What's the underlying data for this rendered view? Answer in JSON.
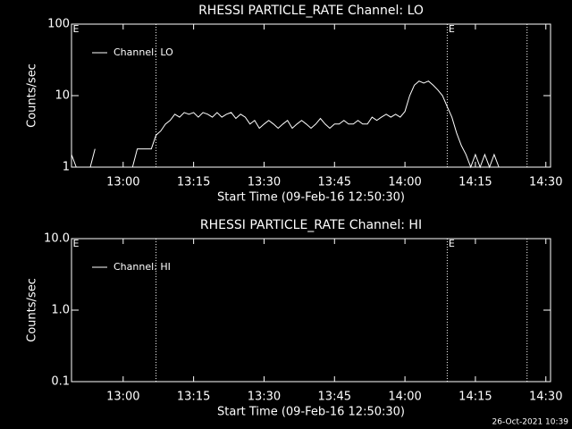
{
  "chart_data": [
    {
      "type": "line",
      "title": "RHESSI PARTICLE_RATE Channel: LO",
      "xlabel": "Start Time (09-Feb-16 12:50:30)",
      "ylabel": "Counts/sec",
      "log_y": true,
      "legend": "upper left",
      "xlim": [
        "12:49",
        "14:31"
      ],
      "xticks": [
        "13:00",
        "13:15",
        "13:30",
        "13:45",
        "14:00",
        "14:15",
        "14:30"
      ],
      "ylim": [
        1,
        100
      ],
      "yticks": [
        1,
        10,
        100
      ],
      "vlines": [
        "13:07",
        "14:09",
        "14:26"
      ],
      "annotations": [
        {
          "text": "E",
          "x": "12:49"
        },
        {
          "text": "E",
          "x": "14:09"
        }
      ],
      "series": [
        {
          "name": "Channel: LO",
          "color": "#ffffff",
          "x": [
            "12:49",
            "12:50",
            "12:51",
            "12:53",
            "12:54",
            "12:55",
            "13:02",
            "13:03",
            "13:04",
            "13:05",
            "13:06",
            "13:07",
            "13:08",
            "13:09",
            "13:10",
            "13:11",
            "13:12",
            "13:13",
            "13:14",
            "13:15",
            "13:16",
            "13:17",
            "13:18",
            "13:19",
            "13:20",
            "13:21",
            "13:22",
            "13:23",
            "13:24",
            "13:25",
            "13:26",
            "13:27",
            "13:28",
            "13:29",
            "13:30",
            "13:31",
            "13:32",
            "13:33",
            "13:34",
            "13:35",
            "13:36",
            "13:37",
            "13:38",
            "13:39",
            "13:40",
            "13:41",
            "13:42",
            "13:43",
            "13:44",
            "13:45",
            "13:46",
            "13:47",
            "13:48",
            "13:49",
            "13:50",
            "13:51",
            "13:52",
            "13:53",
            "13:54",
            "13:55",
            "13:56",
            "13:57",
            "13:58",
            "13:59",
            "14:00",
            "14:01",
            "14:02",
            "14:03",
            "14:04",
            "14:05",
            "14:06",
            "14:07",
            "14:08",
            "14:09",
            "14:10",
            "14:11",
            "14:12",
            "14:13",
            "14:14",
            "14:15",
            "14:16",
            "14:17",
            "14:18",
            "14:19",
            "14:20"
          ],
          "values": [
            1.5,
            1,
            null,
            1,
            1.8,
            null,
            1,
            1.8,
            1.8,
            1.8,
            1.8,
            2.8,
            3.2,
            4,
            4.5,
            5.5,
            5,
            5.8,
            5.5,
            5.8,
            5,
            5.8,
            5.5,
            5,
            5.8,
            5,
            5.5,
            5.8,
            4.8,
            5.5,
            5,
            4,
            4.5,
            3.5,
            4,
            4.5,
            4,
            3.5,
            4,
            4.5,
            3.5,
            4,
            4.5,
            4,
            3.5,
            4,
            4.8,
            4,
            3.5,
            4,
            4,
            4.5,
            4,
            4,
            4.5,
            4,
            4,
            5,
            4.5,
            5,
            5.5,
            5,
            5.5,
            5,
            6,
            10,
            14,
            16,
            15,
            16,
            14,
            12,
            10,
            7,
            5,
            3,
            2,
            1.5,
            1,
            1.5,
            1,
            1.5,
            1,
            1.5,
            1
          ]
        }
      ]
    },
    {
      "type": "line",
      "title": "RHESSI PARTICLE_RATE Channel: HI",
      "xlabel": "Start Time (09-Feb-16 12:50:30)",
      "ylabel": "Counts/sec",
      "log_y": true,
      "legend": "upper left",
      "xlim": [
        "12:49",
        "14:31"
      ],
      "xticks": [
        "13:00",
        "13:15",
        "13:30",
        "13:45",
        "14:00",
        "14:15",
        "14:30"
      ],
      "ylim": [
        0.1,
        10
      ],
      "yticks": [
        0.1,
        {
          "value": 1,
          "label": "1.0"
        },
        {
          "value": 10,
          "label": "10.0"
        }
      ],
      "vlines": [
        "13:07",
        "14:09",
        "14:26"
      ],
      "annotations": [
        {
          "text": "E",
          "x": "12:49"
        },
        {
          "text": "E",
          "x": "14:09"
        }
      ],
      "series": [
        {
          "name": "Channel: HI",
          "color": "#ffffff",
          "x": [],
          "values": []
        }
      ]
    }
  ],
  "footer": "26-Oct-2021 10:39"
}
